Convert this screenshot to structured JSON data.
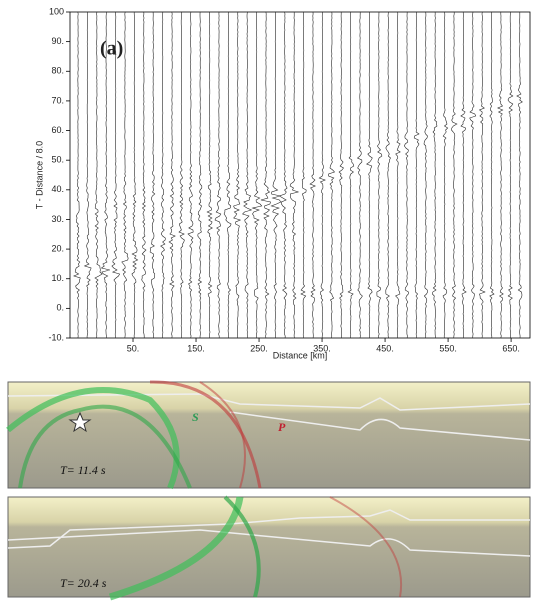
{
  "chart_data": {
    "type": "seismogram",
    "annotation": "(a)",
    "ylabel": "T - Distance / 8.0",
    "xlabel": "Distance [km]",
    "xlim": [
      -50,
      680
    ],
    "ylim": [
      -10,
      100
    ],
    "xticks": [
      {
        "value": 50,
        "label": "50."
      },
      {
        "value": 150,
        "label": "150."
      },
      {
        "value": 250,
        "label": "250."
      },
      {
        "value": 350,
        "label": "350."
      },
      {
        "value": 450,
        "label": "450."
      },
      {
        "value": 550,
        "label": "550."
      },
      {
        "value": 650,
        "label": "650."
      }
    ],
    "yticks": [
      {
        "value": -10,
        "label": "-10."
      },
      {
        "value": 0,
        "label": "0."
      },
      {
        "value": 10,
        "label": "10."
      },
      {
        "value": 20,
        "label": "20."
      },
      {
        "value": 30,
        "label": "30."
      },
      {
        "value": 40,
        "label": "40."
      },
      {
        "value": 50,
        "label": "50."
      },
      {
        "value": 60,
        "label": "60."
      },
      {
        "value": 70,
        "label": "70."
      },
      {
        "value": 80,
        "label": "80."
      },
      {
        "value": 90,
        "label": "90."
      },
      100
    ]
  },
  "snapshots": [
    {
      "s_label": "S",
      "p_label": "P",
      "time_label": "T=  11.4 s"
    },
    {
      "time_label": "T=  20.4 s"
    }
  ]
}
